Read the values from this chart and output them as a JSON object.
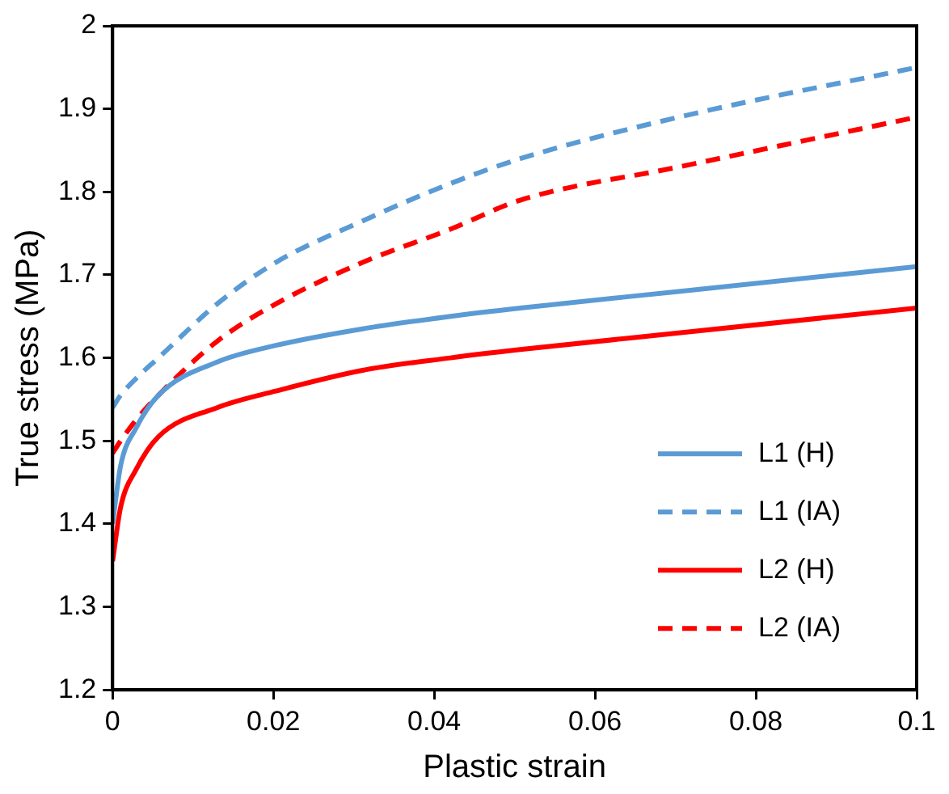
{
  "chart_data": {
    "type": "line",
    "xlabel": "Plastic strain",
    "ylabel": "True stress (MPa)",
    "xlim": [
      0,
      0.1
    ],
    "xticks": [
      0,
      0.02,
      0.04,
      0.06,
      0.08,
      0.1
    ],
    "ylim": [
      1.2,
      2
    ],
    "yticks": [
      1.2,
      1.3,
      1.4,
      1.5,
      1.6,
      1.7,
      1.8,
      1.9,
      2
    ],
    "grid": false,
    "legend": "bottom right",
    "marker": "none",
    "series": [
      {
        "name": "L1 (H)",
        "color": "#5b9bd5",
        "line_style": "solid",
        "x": [
          0,
          0.001,
          0.0029,
          0.0057,
          0.013,
          0.0203,
          0.0311,
          0.042,
          0.0507,
          0.0704,
          0.1
        ],
        "values": [
          1.4,
          1.47,
          1.515,
          1.555,
          1.595,
          1.615,
          1.635,
          1.65,
          1.66,
          1.68,
          1.71
        ]
      },
      {
        "name": "L1 (IA)",
        "color": "#5b9bd5",
        "line_style": "dashed",
        "x": [
          0,
          0.001,
          0.0029,
          0.0057,
          0.013,
          0.0203,
          0.0311,
          0.042,
          0.0507,
          0.0704,
          0.1
        ],
        "values": [
          1.54,
          1.555,
          1.575,
          1.6,
          1.665,
          1.715,
          1.765,
          1.81,
          1.84,
          1.89,
          1.95
        ]
      },
      {
        "name": "L2 (H)",
        "color": "#ff0000",
        "line_style": "solid",
        "x": [
          0,
          0.001,
          0.0029,
          0.0057,
          0.013,
          0.0203,
          0.0311,
          0.042,
          0.0507,
          0.0704,
          0.1
        ],
        "values": [
          1.355,
          1.42,
          1.465,
          1.505,
          1.54,
          1.56,
          1.585,
          1.6,
          1.61,
          1.63,
          1.66
        ]
      },
      {
        "name": "L2 (IA)",
        "color": "#ff0000",
        "line_style": "dashed",
        "x": [
          0,
          0.001,
          0.0029,
          0.0057,
          0.013,
          0.0203,
          0.0311,
          0.042,
          0.0507,
          0.0704,
          0.1
        ],
        "values": [
          1.485,
          1.5,
          1.525,
          1.555,
          1.62,
          1.665,
          1.715,
          1.755,
          1.79,
          1.83,
          1.89
        ]
      }
    ]
  }
}
